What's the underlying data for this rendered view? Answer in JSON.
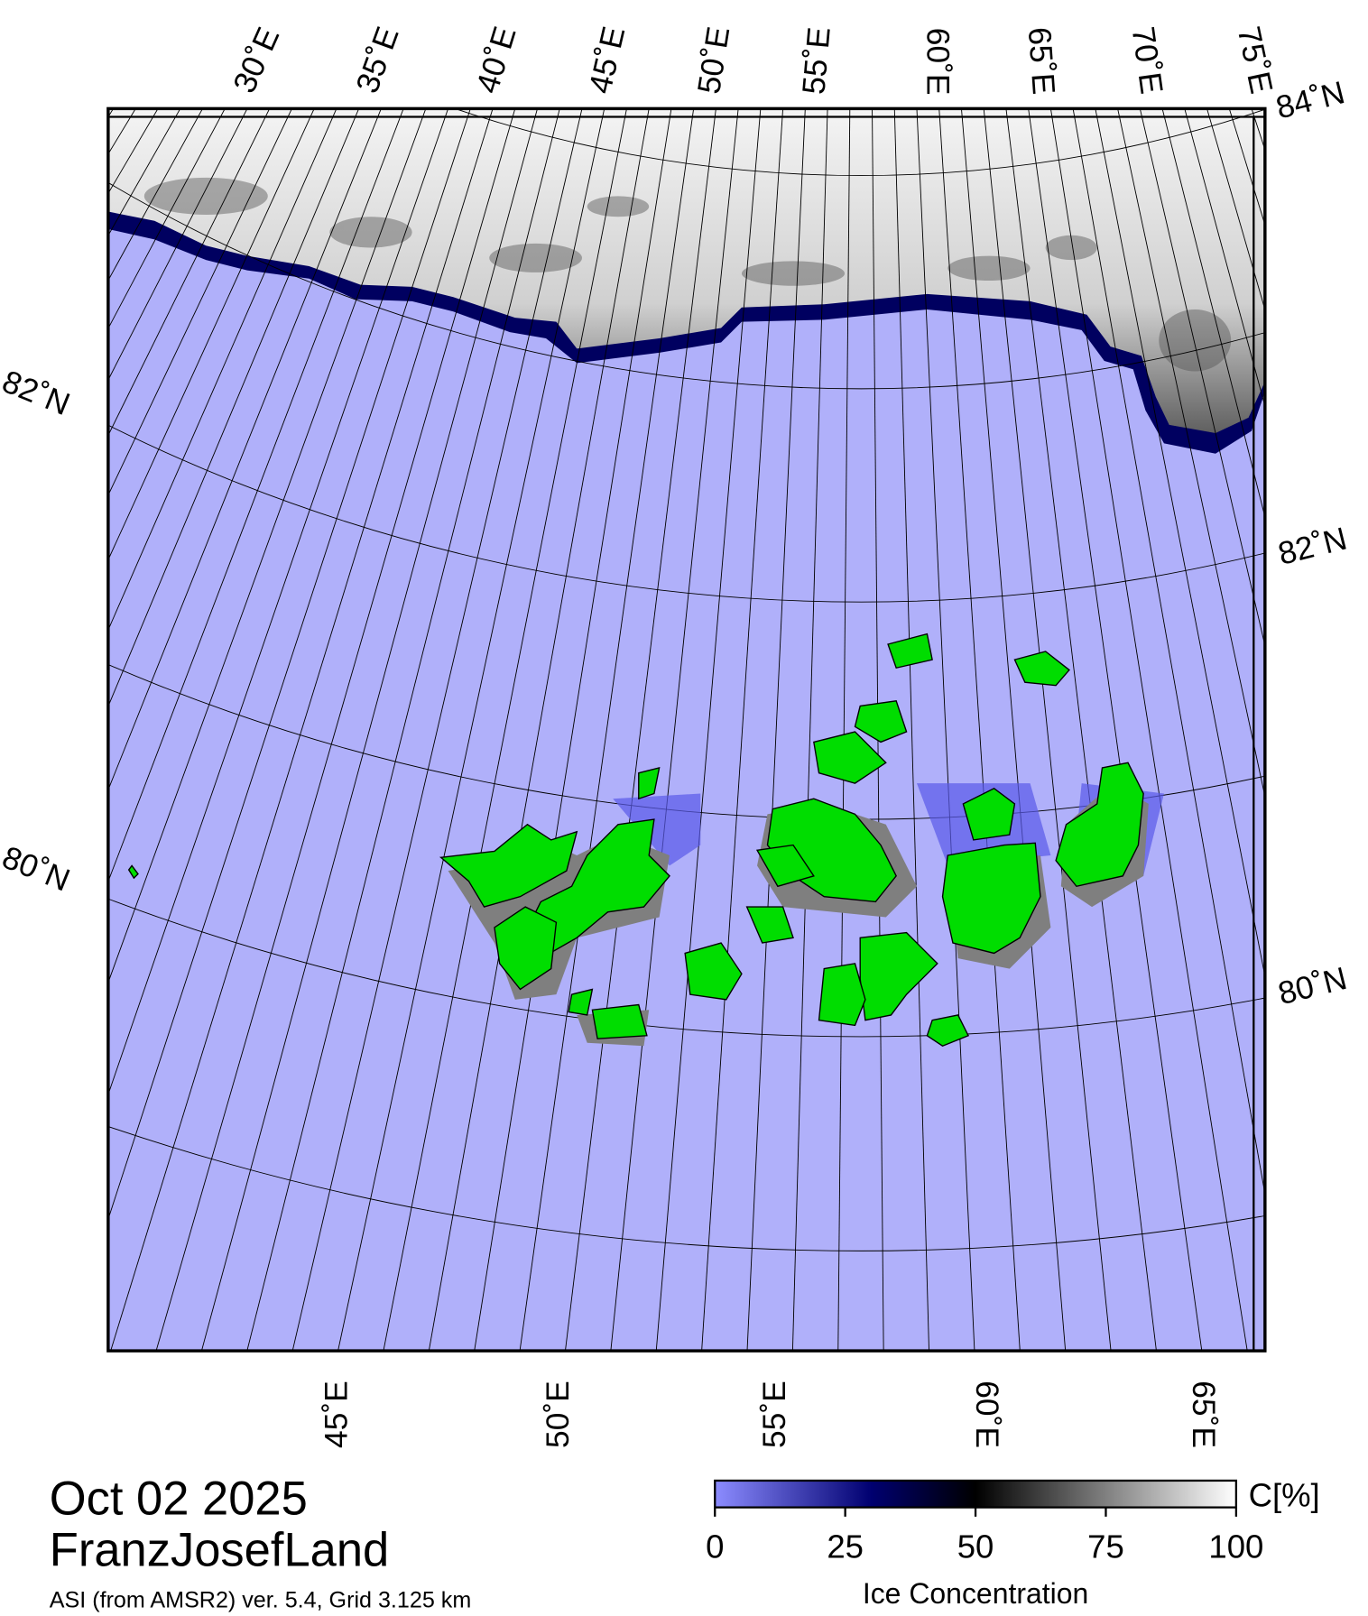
{
  "header": {
    "date": "Oct 02 2025",
    "region": "FranzJosefLand",
    "source": "ASI (from AMSR2) ver. 5.4,  Grid 3.125 km"
  },
  "map": {
    "lon_labels_top": [
      "30˚E",
      "35˚E",
      "40˚E",
      "45˚E",
      "50˚E",
      "55˚E",
      "60˚E",
      "65˚E",
      "70˚E",
      "75˚E"
    ],
    "lon_labels_bottom": [
      "45˚E",
      "50˚E",
      "55˚E",
      "60˚E",
      "65˚E"
    ],
    "lat_labels_right": [
      "84˚N",
      "82˚N",
      "80˚N"
    ],
    "lat_labels_left": [
      "82˚N",
      "80˚N"
    ]
  },
  "colorbar": {
    "label": "Ice Concentration",
    "unit": "C[%]",
    "lim": [
      0,
      100
    ],
    "ticks": [
      0,
      25,
      50,
      75,
      100
    ]
  }
}
